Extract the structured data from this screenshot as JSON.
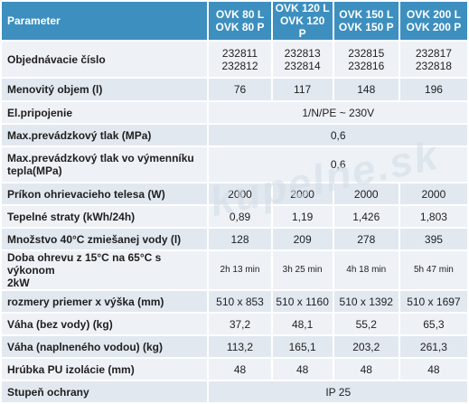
{
  "header": {
    "parameter": "Parameter",
    "models": [
      [
        "OVK 80 L",
        "OVK 80 P"
      ],
      [
        "OVK 120 L",
        "OVK 120 P"
      ],
      [
        "OVK 150 L",
        "OVK 150 P"
      ],
      [
        "OVK 200 L",
        "OVK 200 P"
      ]
    ]
  },
  "rows": [
    {
      "label": "Objednávacie číslo",
      "values": [
        [
          "232811",
          "232812"
        ],
        [
          "232813",
          "232814"
        ],
        [
          "232815",
          "232816"
        ],
        [
          "232817",
          "232818"
        ]
      ]
    },
    {
      "label": "Menovitý objem (l)",
      "values": [
        "76",
        "117",
        "148",
        "196"
      ]
    },
    {
      "label": "El.pripojenie",
      "span": "1/N/PE ~ 230V"
    },
    {
      "label": "Max.prevádzkový tlak (MPa)",
      "span": "0,6"
    },
    {
      "label": [
        "Max.prevádzkový tlak vo výmenníku",
        "tepla(MPa)"
      ],
      "span": "0,6"
    },
    {
      "label": "Príkon ohrievacieho telesa (W)",
      "values": [
        "2000",
        "2000",
        "2000",
        "2000"
      ]
    },
    {
      "label": "Tepelné straty (kWh/24h)",
      "values": [
        "0,89",
        "1,19",
        "1,426",
        "1,803"
      ]
    },
    {
      "label": "Množstvo 40°C zmiešanej vody (l)",
      "values": [
        "128",
        "209",
        "278",
        "395"
      ]
    },
    {
      "label": [
        "Doba ohrevu z 15°C na 65°C s výkonom",
        "2kW"
      ],
      "values": [
        "2h 13 min",
        "3h 25 min",
        "4h 18 min",
        "5h 47 min"
      ],
      "small": true
    },
    {
      "label": "rozmery priemer x výška (mm)",
      "values": [
        "510 x 853",
        "510 x 1160",
        "510 x 1392",
        "510 x 1697"
      ]
    },
    {
      "label": "Váha (bez vody) (kg)",
      "values": [
        "37,2",
        "48,1",
        "55,2",
        "65,3"
      ]
    },
    {
      "label": "Váha (naplneného vodou) (kg)",
      "values": [
        "113,2",
        "165,1",
        "203,2",
        "261,3"
      ]
    },
    {
      "label": "Hrúbka PU izolácie (mm)",
      "values": [
        "48",
        "48",
        "48",
        "48"
      ]
    },
    {
      "label": "Stupeň ochrany",
      "span": "IP 25"
    }
  ],
  "watermark": "kupelne.sk",
  "colors": {
    "header_bg": "#3d8fbf",
    "row_bg": "#eef2f7",
    "row_alt_bg": "#e2e8f0"
  }
}
